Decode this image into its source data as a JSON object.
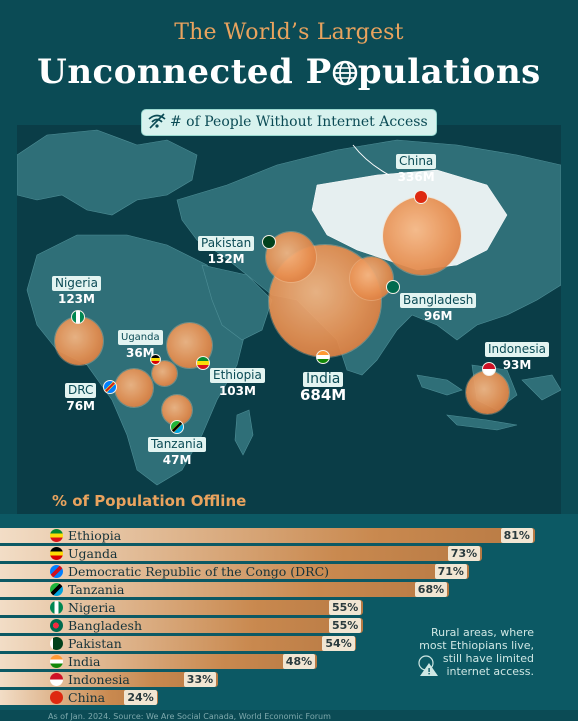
{
  "header": {
    "subtitle": "The World’s Largest",
    "title_prefix": "Unconnected P",
    "title_suffix": "pulations",
    "badge": "# of People Without Internet Access"
  },
  "map_labels": [
    {
      "name": "China",
      "value": "336M"
    },
    {
      "name": "Pakistan",
      "value": "132M"
    },
    {
      "name": "Bangladesh",
      "value": "96M"
    },
    {
      "name": "Nigeria",
      "value": "123M"
    },
    {
      "name": "Uganda",
      "value": "36M"
    },
    {
      "name": "Ethiopia",
      "value": "103M"
    },
    {
      "name": "DRC",
      "value": "76M"
    },
    {
      "name": "Tanzania",
      "value": "47M"
    },
    {
      "name": "India",
      "value": "684M"
    },
    {
      "name": "Indonesia",
      "value": "93M"
    }
  ],
  "chart_data": [
    {
      "type": "scatter",
      "series": [
        {
          "name": "# of People Without Internet Access",
          "categories": [
            "China",
            "Pakistan",
            "Bangladesh",
            "Nigeria",
            "Uganda",
            "Ethiopia",
            "DRC",
            "Tanzania",
            "India",
            "Indonesia"
          ],
          "values": [
            336,
            132,
            96,
            123,
            36,
            103,
            76,
            47,
            684,
            93
          ],
          "unit": "M"
        }
      ]
    },
    {
      "type": "bar",
      "title": "% of Population Offline",
      "categories": [
        "Ethiopia",
        "Uganda",
        "Democratic Republic of the Congo (DRC)",
        "Tanzania",
        "Nigeria",
        "Bangladesh",
        "Pakistan",
        "India",
        "Indonesia",
        "China"
      ],
      "values": [
        81,
        73,
        71,
        68,
        55,
        55,
        54,
        48,
        33,
        24
      ],
      "value_labels": [
        "81%",
        "73%",
        "71%",
        "68%",
        "55%",
        "55%",
        "54%",
        "48%",
        "33%",
        "24%"
      ]
    }
  ],
  "note": "Rural areas, where most Ethiopians live, still have limited internet access.",
  "footer": "As of Jan. 2024. Source: We Are Social Canada, World Economic Forum",
  "colors": {
    "background": "#0b4b55",
    "accent": "#e9a35e",
    "bubble": "#e88f50"
  }
}
